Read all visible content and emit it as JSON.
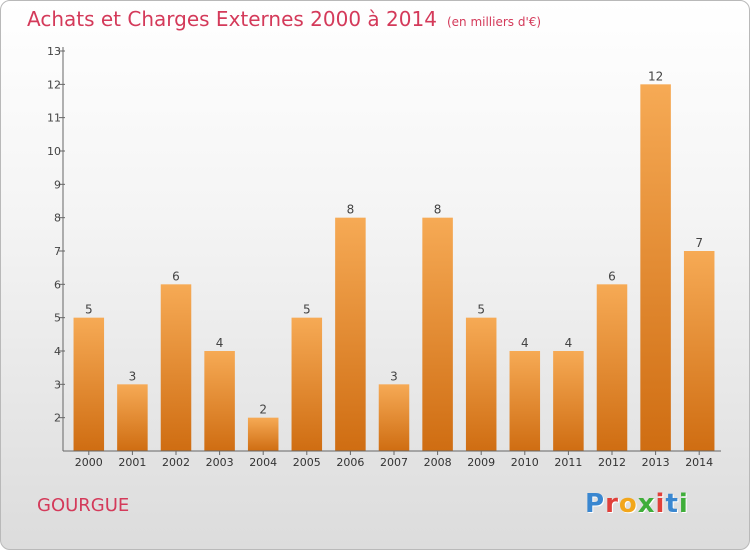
{
  "title": "Achats et Charges Externes 2000 à 2014",
  "unit": "(en milliers d'€)",
  "city": "GOURGUE",
  "logo": {
    "text": "Proxiti",
    "colors": [
      "#3a87d0",
      "#e0403a",
      "#f2a61b",
      "#3fae3a",
      "#e0403a",
      "#3a87d0",
      "#3fae3a"
    ]
  },
  "colors": {
    "title": "#d43a5a",
    "bar_top": "#f6aa55",
    "bar_bottom": "#cf6d12",
    "axis": "#666666"
  },
  "chart_data": {
    "type": "bar",
    "title": "Achats et Charges Externes 2000 à 2014",
    "categories": [
      "2000",
      "2001",
      "2002",
      "2003",
      "2004",
      "2005",
      "2006",
      "2007",
      "2008",
      "2009",
      "2010",
      "2011",
      "2012",
      "2013",
      "2014"
    ],
    "values": [
      5,
      3,
      6,
      4,
      2,
      5,
      8,
      3,
      8,
      5,
      4,
      4,
      6,
      12,
      7
    ],
    "ylim": [
      1,
      13
    ],
    "yticks": [
      2,
      3,
      4,
      5,
      6,
      7,
      8,
      9,
      10,
      11,
      12,
      13
    ],
    "grid": false,
    "data_labels": true
  }
}
